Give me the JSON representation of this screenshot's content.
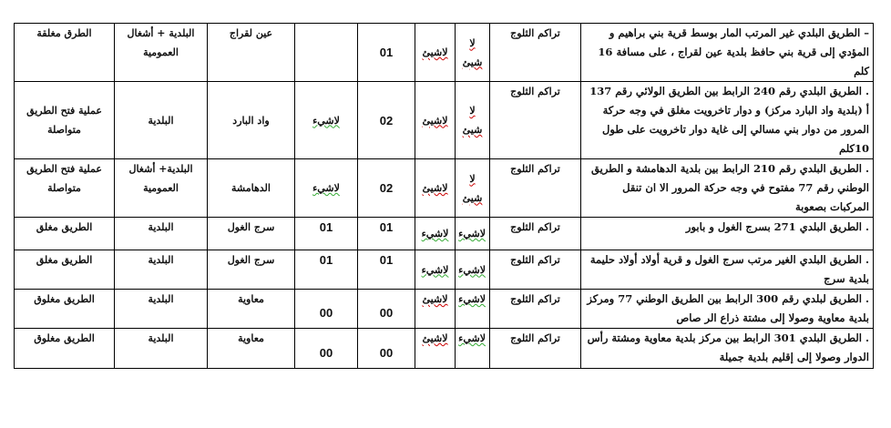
{
  "rows": [
    {
      "description": "– الطريق البلدي غير المرتب المار بوسط قرية بني براهيم و المؤدي إلى قرية بني حافظ بلدية عين لقراج ، على مسافة 16 كلم",
      "cause": "تراكم الثلوج",
      "col_a": "لا شيئ",
      "col_b": "لاشيئ",
      "col_c": "01",
      "col_d": "",
      "location": "عين لقراج",
      "responsible": "البلدية + أشغال العمومية",
      "status": "الطرق مغلقة"
    },
    {
      "description": ". الطريق البلدي رقم 240 الرابط بين الطريق الولائي رقم 137 أ (بلدية واد البارد مركز) و دوار تاخرويت مغلق في وجه حركة المرور من دوار بني مسالي إلى غاية دوار تاخرويت على طول 10كلم",
      "cause": "تراكم الثلوج",
      "col_a": "لا شيئ",
      "col_b": "لاشيئ",
      "col_c": "02",
      "col_d": "لاشيء",
      "location": "واد البارد",
      "responsible": "البلدية",
      "status": "عملية فتح الطريق متواصلة"
    },
    {
      "description": ". الطريق البلدي رقم 210 الرابط بين بلدية الدهامشة و الطريق الوطني رقم 77 مفتوح في وجه حركة المرور الا ان تنقل المركبات بصعوبة",
      "cause": "تراكم الثلوج",
      "col_a": "لا شيئ",
      "col_b": "لاشيئ",
      "col_c": "02",
      "col_d": "لاشيء",
      "location": "الدهامشة",
      "responsible": "البلدية+ أشغال العمومية",
      "status": "عملية فتح الطريق متواصلة"
    },
    {
      "description": ". الطريق البلدي 271 بسرج الغول و بابور",
      "cause": "تراكم الثلوج",
      "col_a": "لاشيء",
      "col_b": "لاشيء",
      "col_c": "01",
      "col_d": "01",
      "location": "سرج الغول",
      "responsible": "البلدية",
      "status": "الطريق مغلق"
    },
    {
      "description": ". الطريق البلدي الغير مرتب سرج الغول و قرية أولاد أولاد حليمة بلدية سرج",
      "cause": "تراكم الثلوج",
      "col_a": "لاشيء",
      "col_b": "لاشيء",
      "col_c": "01",
      "col_d": "01",
      "location": "سرج الغول",
      "responsible": "البلدية",
      "status": "الطريق مغلق"
    },
    {
      "description": ". الطريق لبلدي رقم 300 الرابط بين الطريق الوطني 77 ومركز بلدية معاوية وصولا إلى مشتة ذراع الر صاص",
      "cause": "تراكم الثلوج",
      "col_a": "لاشيء",
      "col_b": "لاشيئ",
      "col_c": "00",
      "col_d": "00",
      "location": "معاوية",
      "responsible": "البلدية",
      "status": "الطريق مغلوق"
    },
    {
      "description": ". الطريق البلدي 301 الرابط بين مركز بلدية معاوية ومشتة رأس الدوار وصولا إلى إقليم بلدية جميلة",
      "cause": "تراكم الثلوج",
      "col_a": "لاشيء",
      "col_b": "لاشيئ",
      "col_c": "00",
      "col_d": "00",
      "location": "معاوية",
      "responsible": "البلدية",
      "status": "الطريق مغلوق"
    }
  ]
}
